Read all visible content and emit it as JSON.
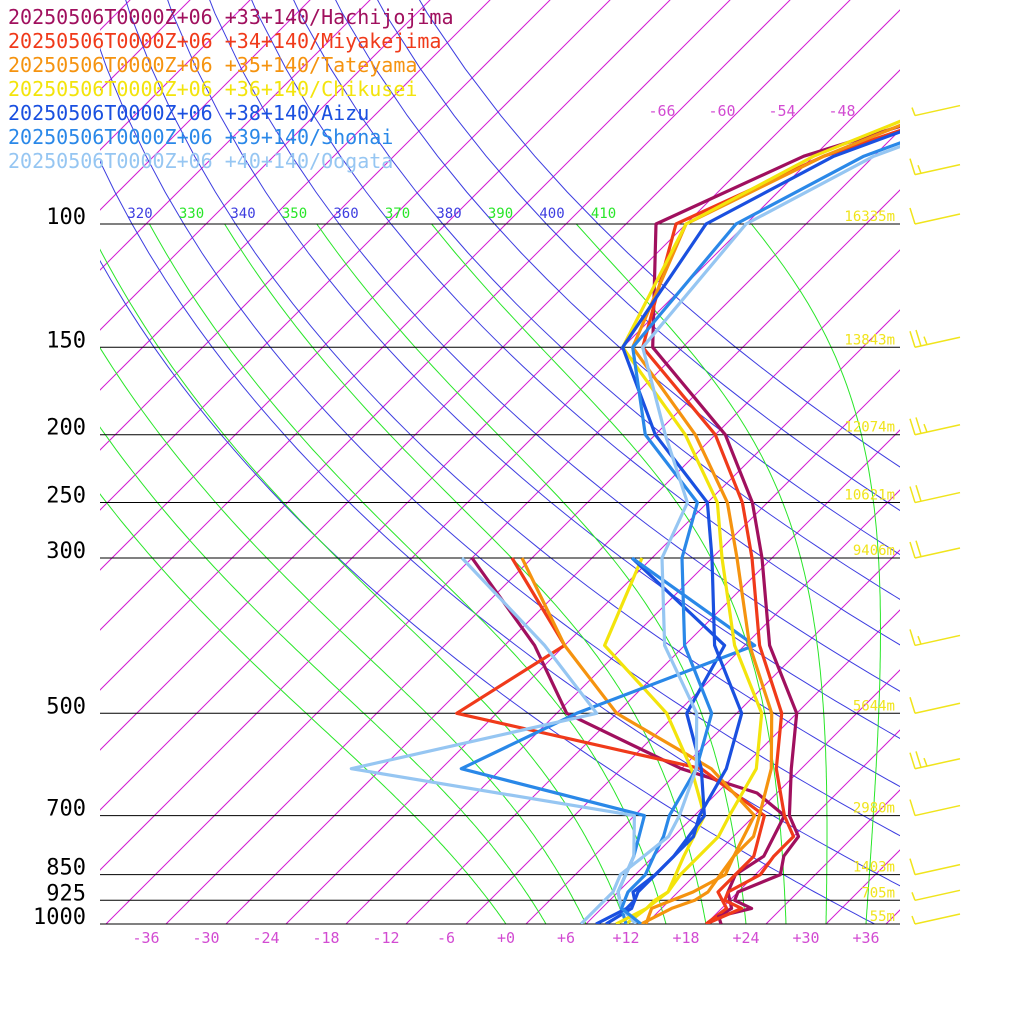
{
  "chart_data": {
    "type": "line",
    "chart_kind": "skew-T log-P sounding",
    "series": [
      {
        "name": "20250506T0000Z+06 +33+140/Hachijojima",
        "color": "#a0105e",
        "temperature": [
          [
            1000,
            21.5
          ],
          [
            975,
            20.5
          ],
          [
            950,
            23.0
          ],
          [
            925,
            20.5
          ],
          [
            900,
            20.0
          ],
          [
            850,
            22.5
          ],
          [
            800,
            21.0
          ],
          [
            750,
            20.5
          ],
          [
            700,
            17.5
          ],
          [
            600,
            13.0
          ],
          [
            500,
            8.0
          ],
          [
            400,
            -1.5
          ],
          [
            300,
            -11.0
          ],
          [
            250,
            -17.5
          ],
          [
            200,
            -27.0
          ],
          [
            150,
            -43.0
          ],
          [
            100,
            -55.0
          ],
          [
            80,
            -47.0
          ],
          [
            70,
            -38.0
          ],
          [
            65,
            -30.0
          ]
        ],
        "dewpoint": [
          [
            300,
            -40.0
          ],
          [
            400,
            -25.0
          ],
          [
            500,
            -15.0
          ],
          [
            600,
            2.0
          ],
          [
            650,
            12.0
          ],
          [
            700,
            17.0
          ],
          [
            800,
            19.0
          ],
          [
            850,
            18.0
          ],
          [
            900,
            19.0
          ],
          [
            950,
            21.0
          ],
          [
            1000,
            20.0
          ]
        ]
      },
      {
        "name": "20250506T0000Z+06 +34+140/Miyakejima",
        "color": "#f03a1a",
        "temperature": [
          [
            1000,
            20.0
          ],
          [
            950,
            22.0
          ],
          [
            925,
            19.5
          ],
          [
            900,
            19.0
          ],
          [
            850,
            20.5
          ],
          [
            800,
            20.0
          ],
          [
            750,
            20.0
          ],
          [
            700,
            17.0
          ],
          [
            600,
            11.5
          ],
          [
            500,
            6.5
          ],
          [
            400,
            -2.5
          ],
          [
            300,
            -12.0
          ],
          [
            250,
            -18.5
          ],
          [
            200,
            -28.0
          ],
          [
            150,
            -44.0
          ],
          [
            100,
            -53.0
          ],
          [
            80,
            -45.0
          ],
          [
            70,
            -37.0
          ],
          [
            65,
            -29.0
          ]
        ],
        "dewpoint": [
          [
            300,
            -36.0
          ],
          [
            400,
            -22.0
          ],
          [
            500,
            -26.0
          ],
          [
            600,
            4.0
          ],
          [
            700,
            15.0
          ],
          [
            800,
            18.0
          ],
          [
            900,
            18.0
          ],
          [
            950,
            20.5
          ],
          [
            1000,
            20.0
          ]
        ]
      },
      {
        "name": "20250506T0000Z+06 +35+140/Tateyama",
        "color": "#f5930f",
        "temperature": [
          [
            1000,
            13.5
          ],
          [
            950,
            15.0
          ],
          [
            925,
            16.5
          ],
          [
            900,
            17.0
          ],
          [
            850,
            16.5
          ],
          [
            800,
            16.0
          ],
          [
            750,
            16.0
          ],
          [
            700,
            14.5
          ],
          [
            600,
            11.0
          ],
          [
            500,
            5.5
          ],
          [
            400,
            -3.5
          ],
          [
            300,
            -13.5
          ],
          [
            250,
            -20.0
          ],
          [
            200,
            -30.0
          ],
          [
            150,
            -45.0
          ],
          [
            100,
            -52.0
          ],
          [
            80,
            -45.0
          ],
          [
            70,
            -39.0
          ],
          [
            65,
            -30.0
          ]
        ],
        "dewpoint": [
          [
            300,
            -35.0
          ],
          [
            400,
            -22.0
          ],
          [
            500,
            -10.0
          ],
          [
            600,
            5.0
          ],
          [
            700,
            14.0
          ],
          [
            800,
            16.0
          ],
          [
            850,
            17.0
          ],
          [
            900,
            15.5
          ],
          [
            950,
            13.0
          ],
          [
            1000,
            14.0
          ]
        ]
      },
      {
        "name": "20250506T0000Z+06 +36+140/Chikusei",
        "color": "#f3e40c",
        "temperature": [
          [
            1000,
            11.0
          ],
          [
            950,
            12.5
          ],
          [
            925,
            12.5
          ],
          [
            900,
            13.0
          ],
          [
            850,
            12.5
          ],
          [
            800,
            12.5
          ],
          [
            750,
            12.5
          ],
          [
            700,
            11.5
          ],
          [
            600,
            9.5
          ],
          [
            500,
            4.5
          ],
          [
            400,
            -5.0
          ],
          [
            300,
            -15.0
          ],
          [
            250,
            -21.0
          ],
          [
            200,
            -31.0
          ],
          [
            150,
            -46.0
          ],
          [
            100,
            -52.0
          ],
          [
            80,
            -46.0
          ],
          [
            70,
            -40.0
          ],
          [
            65,
            -33.0
          ]
        ],
        "dewpoint": [
          [
            300,
            -23.0
          ],
          [
            400,
            -18.0
          ],
          [
            500,
            -5.0
          ],
          [
            600,
            3.0
          ],
          [
            700,
            9.0
          ],
          [
            800,
            11.0
          ],
          [
            900,
            13.0
          ],
          [
            950,
            12.5
          ],
          [
            1000,
            12.0
          ]
        ]
      },
      {
        "name": "20250506T0000Z+06 +38+140/Aizu",
        "color": "#1a50e0",
        "temperature": [
          [
            1000,
            9.0
          ],
          [
            950,
            10.5
          ],
          [
            925,
            10.5
          ],
          [
            900,
            9.5
          ],
          [
            850,
            10.0
          ],
          [
            800,
            10.0
          ],
          [
            750,
            10.0
          ],
          [
            700,
            8.5
          ],
          [
            600,
            6.5
          ],
          [
            500,
            2.5
          ],
          [
            400,
            -7.0
          ],
          [
            300,
            -16.0
          ],
          [
            250,
            -22.0
          ],
          [
            200,
            -34.0
          ],
          [
            150,
            -46.0
          ],
          [
            100,
            -50.0
          ],
          [
            80,
            -44.0
          ],
          [
            70,
            -37.0
          ],
          [
            65,
            -31.0
          ]
        ],
        "dewpoint": [
          [
            300,
            -24.0
          ],
          [
            400,
            -6.0
          ],
          [
            500,
            -3.0
          ],
          [
            600,
            4.0
          ],
          [
            700,
            9.0
          ],
          [
            800,
            10.0
          ],
          [
            900,
            10.0
          ],
          [
            950,
            11.0
          ],
          [
            1000,
            10.0
          ]
        ]
      },
      {
        "name": "20250506T0000Z+06 +39+140/Shonai",
        "color": "#2a88e8",
        "temperature": [
          [
            1000,
            13.5
          ],
          [
            950,
            10.0
          ],
          [
            925,
            9.5
          ],
          [
            900,
            9.0
          ],
          [
            850,
            9.0
          ],
          [
            800,
            8.0
          ],
          [
            750,
            7.0
          ],
          [
            700,
            5.5
          ],
          [
            600,
            3.5
          ],
          [
            500,
            -0.5
          ],
          [
            400,
            -10.0
          ],
          [
            300,
            -19.0
          ],
          [
            250,
            -23.0
          ],
          [
            200,
            -35.0
          ],
          [
            150,
            -45.0
          ],
          [
            100,
            -47.0
          ],
          [
            80,
            -41.0
          ],
          [
            70,
            -34.0
          ],
          [
            65,
            -28.0
          ]
        ],
        "dewpoint": [
          [
            300,
            -24.0
          ],
          [
            400,
            -3.0
          ],
          [
            500,
            -14.0
          ],
          [
            600,
            -20.0
          ],
          [
            700,
            3.0
          ],
          [
            800,
            6.0
          ],
          [
            900,
            8.0
          ],
          [
            950,
            10.0
          ],
          [
            1000,
            12.0
          ]
        ]
      },
      {
        "name": "20250506T0000Z+06 +40+140/Oogata",
        "color": "#96c6f2",
        "temperature": [
          [
            1000,
            7.5
          ],
          [
            950,
            7.5
          ],
          [
            925,
            7.5
          ],
          [
            900,
            7.5
          ],
          [
            850,
            6.5
          ],
          [
            800,
            7.0
          ],
          [
            750,
            7.5
          ],
          [
            700,
            6.5
          ],
          [
            600,
            3.5
          ],
          [
            500,
            -2.0
          ],
          [
            400,
            -12.0
          ],
          [
            300,
            -21.0
          ],
          [
            250,
            -24.0
          ],
          [
            200,
            -33.0
          ],
          [
            150,
            -44.0
          ],
          [
            100,
            -46.0
          ],
          [
            80,
            -40.0
          ],
          [
            70,
            -33.0
          ],
          [
            65,
            -27.0
          ]
        ],
        "dewpoint": [
          [
            300,
            -41.0
          ],
          [
            400,
            -24.0
          ],
          [
            500,
            -12.0
          ],
          [
            600,
            -31.0
          ],
          [
            700,
            2.0
          ],
          [
            800,
            6.0
          ],
          [
            900,
            8.0
          ],
          [
            950,
            10.0
          ],
          [
            1000,
            13.0
          ]
        ]
      }
    ],
    "pressure_labels": [
      "100",
      "150",
      "200",
      "250",
      "300",
      "500",
      "700",
      "850",
      "925",
      "1000"
    ],
    "height_labels": [
      {
        "p": 100,
        "text": "16335m"
      },
      {
        "p": 150,
        "text": "13843m"
      },
      {
        "p": 200,
        "text": "12074m"
      },
      {
        "p": 250,
        "text": "10621m"
      },
      {
        "p": 300,
        "text": "9406m"
      },
      {
        "p": 500,
        "text": "5644m"
      },
      {
        "p": 700,
        "text": "2980m"
      },
      {
        "p": 850,
        "text": "1403m"
      },
      {
        "p": 925,
        "text": "705m"
      },
      {
        "p": 1000,
        "text": "55m"
      }
    ],
    "temperature_ticks": [
      "-36",
      "-30",
      "-24",
      "-18",
      "-12",
      "-6",
      "+0",
      "+6",
      "+12",
      "+18",
      "+24",
      "+30",
      "+36"
    ],
    "upper_isotherm_labels": [
      "-66",
      "-60",
      "-54",
      "-48"
    ],
    "theta_labels": [
      "320",
      "330",
      "340",
      "350",
      "360",
      "370",
      "380",
      "390",
      "400",
      "410"
    ],
    "theta_values": [
      310,
      320,
      330,
      340,
      350,
      360,
      370,
      380,
      390,
      400,
      410
    ],
    "wind_barbs": [
      {
        "p": 70,
        "speed": 5
      },
      {
        "p": 85,
        "speed": 15
      },
      {
        "p": 100,
        "speed": 10
      },
      {
        "p": 150,
        "speed": 25
      },
      {
        "p": 200,
        "speed": 25
      },
      {
        "p": 250,
        "speed": 20
      },
      {
        "p": 300,
        "speed": 20
      },
      {
        "p": 400,
        "speed": 15
      },
      {
        "p": 500,
        "speed": 10
      },
      {
        "p": 600,
        "speed": 25
      },
      {
        "p": 700,
        "speed": 10
      },
      {
        "p": 850,
        "speed": 10
      },
      {
        "p": 925,
        "speed": 5
      },
      {
        "p": 1000,
        "speed": 5
      }
    ],
    "p_range": [
      1000,
      62
    ],
    "t_range": [
      -40,
      39
    ],
    "colors": {
      "isobar": "#000000",
      "isotherm": "#d21cd2",
      "dry_adiabat": "#3d3de0",
      "moist_adiabat": "#29e629",
      "height_label": "#f0e41c",
      "wind": "#f0e41c",
      "tick_label": "#d24bd2"
    }
  }
}
